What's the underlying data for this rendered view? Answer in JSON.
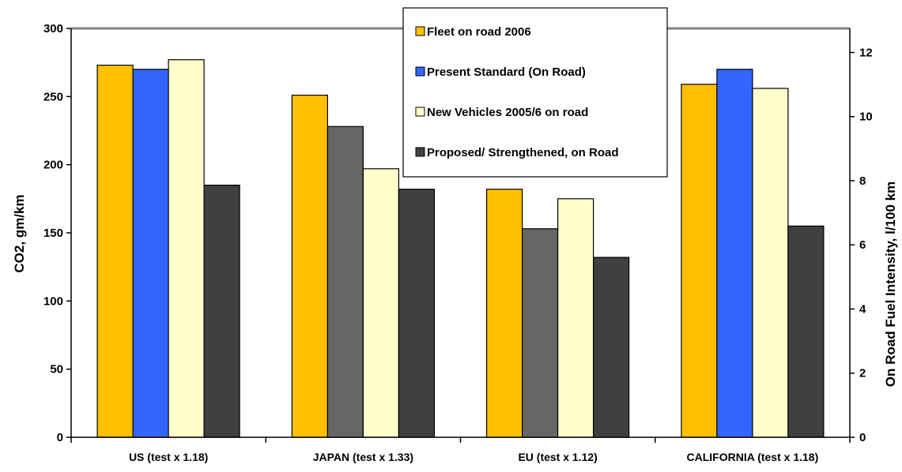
{
  "chart_data": {
    "type": "bar",
    "categories": [
      "US (test x 1.18)",
      "JAPAN (test x 1.33)",
      "EU (test x 1.12)",
      "CALIFORNIA (test x 1.18)"
    ],
    "series": [
      {
        "name": "Fleet on road 2006",
        "values": [
          273,
          251,
          182,
          259
        ],
        "color": "#FFC000"
      },
      {
        "name": "Present Standard (On Road)",
        "values": [
          270,
          228,
          153,
          270
        ],
        "color": "#3366FF"
      },
      {
        "name": "New Vehicles 2005/6 on road",
        "values": [
          277,
          197,
          175,
          256
        ],
        "color": "#FFFFCC"
      },
      {
        "name": "Proposed/ Strengthened, on Road",
        "values": [
          185,
          182,
          132,
          155
        ],
        "color": "#404040"
      }
    ],
    "bar_colors": [
      [
        "#FFC000",
        "#3366FF",
        "#FFFFCC",
        "#404040"
      ],
      [
        "#FFC000",
        "#666666",
        "#FFFFCC",
        "#404040"
      ],
      [
        "#FFC000",
        "#666666",
        "#FFFFCC",
        "#404040"
      ],
      [
        "#FFC000",
        "#3366FF",
        "#FFFFCC",
        "#404040"
      ]
    ],
    "ylabel": "CO2, gm/km",
    "ylim": [
      0,
      300
    ],
    "yticks": [
      "0",
      "50",
      "100",
      "150",
      "200",
      "250",
      "300"
    ],
    "y2label": "On Road Fuel Intensity, l/100 km",
    "y2lim": [
      0,
      12.75
    ],
    "y2ticks": [
      "0",
      "2",
      "4",
      "6",
      "8",
      "10",
      "12"
    ],
    "legend_position": "top-center",
    "grid": false
  }
}
